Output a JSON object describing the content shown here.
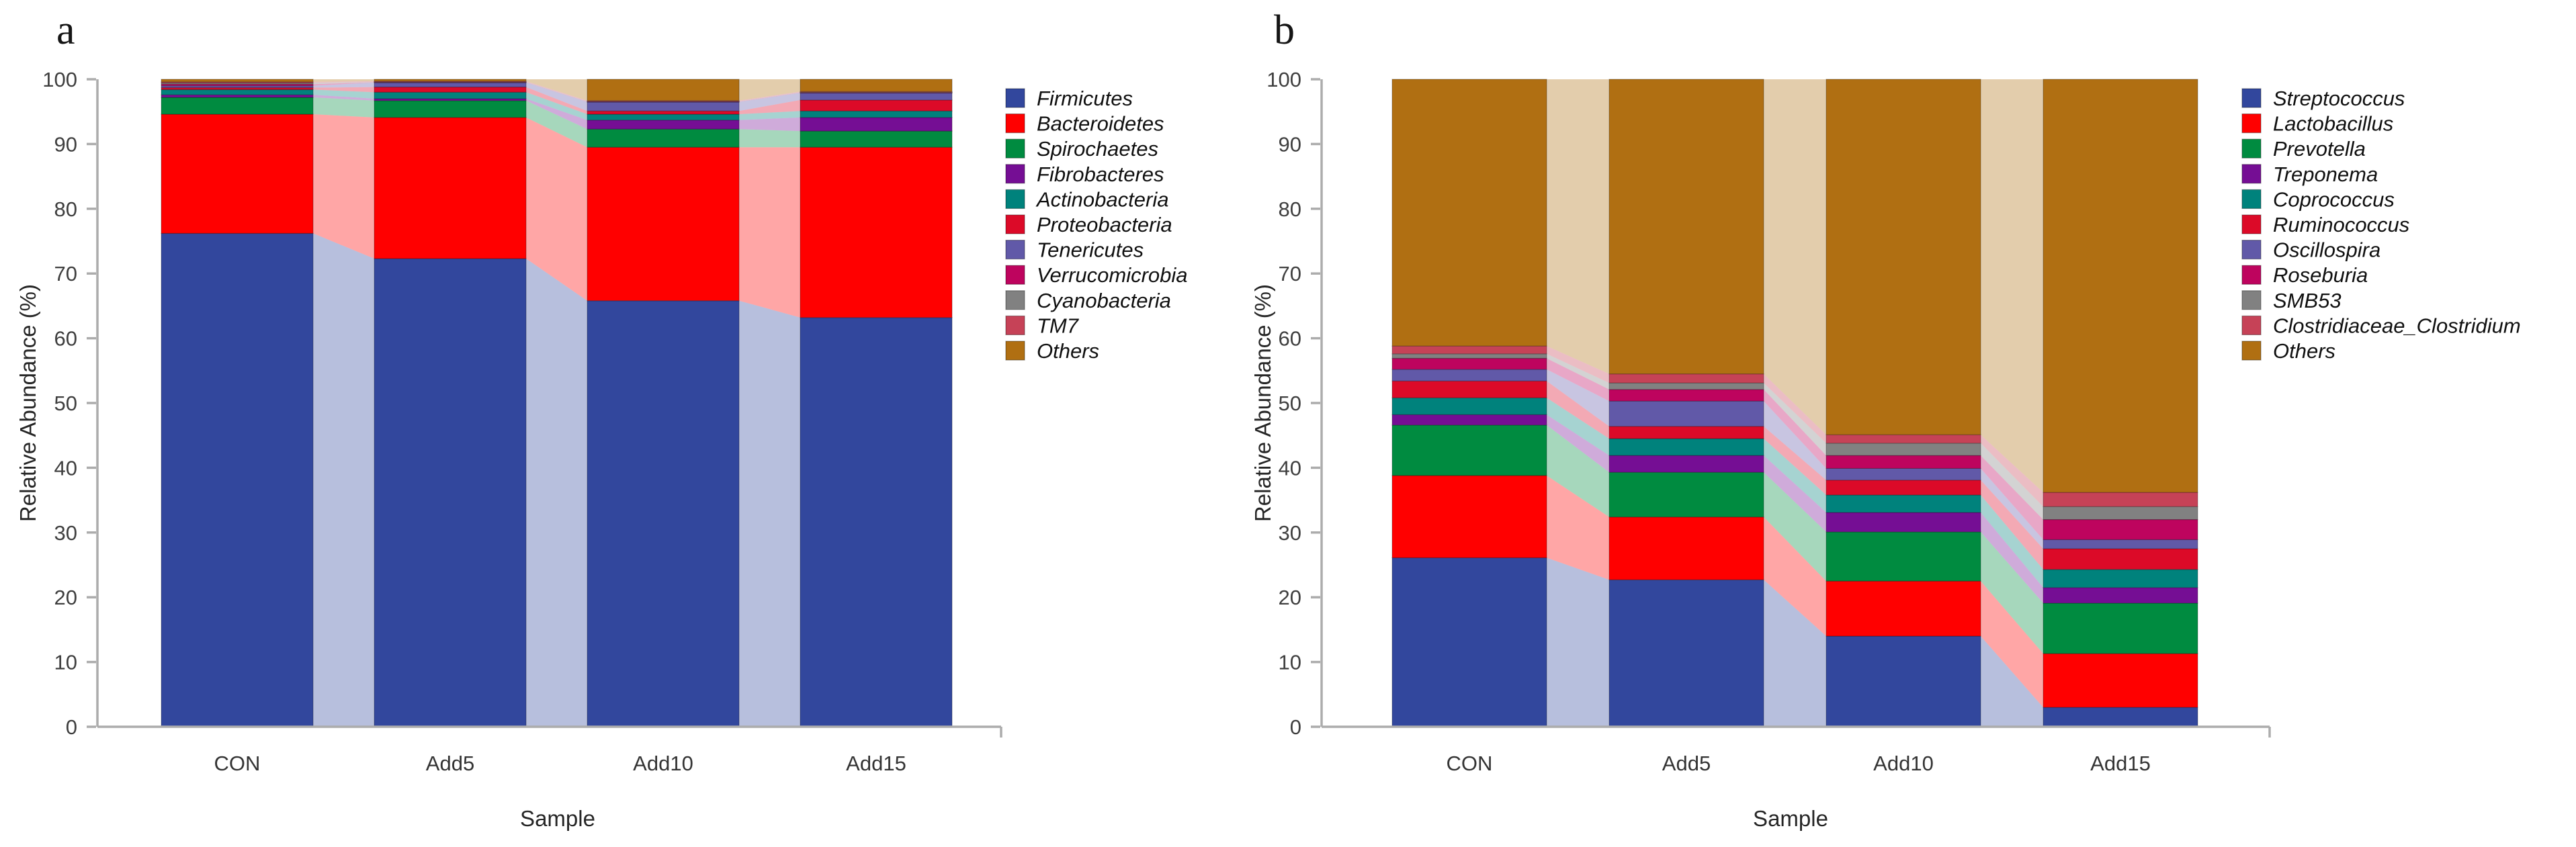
{
  "panels": [
    {
      "label": "a"
    },
    {
      "label": "b"
    }
  ],
  "style": {
    "background": "#FFFFFF",
    "axis_color": "#ACACAC",
    "tick_label_color": "#3F3F3F",
    "category_label_color": "#333333",
    "axis_title_color": "#262626",
    "legend_text_color": "#101010",
    "segment_border": "rgba(0,0,0,0.25)",
    "ribbon_opacity": 0.35
  },
  "chart_data": [
    {
      "type": "bar",
      "variant": "stacked-alluvial",
      "panel": "a",
      "title": "",
      "xlabel": "Sample",
      "ylabel": "Relative Abundance (%)",
      "ylim": [
        0,
        100
      ],
      "yticks": [
        0,
        10,
        20,
        30,
        40,
        50,
        60,
        70,
        80,
        90,
        100
      ],
      "grid": false,
      "legend_position": "right",
      "categories": [
        "CON",
        "Add5",
        "Add10",
        "Add15"
      ],
      "series": [
        {
          "name": "Firmicutes",
          "color": "#32479D",
          "values": [
            76.2,
            72.3,
            65.8,
            63.2
          ]
        },
        {
          "name": "Bacteroidetes",
          "color": "#FF0000",
          "values": [
            18.4,
            21.8,
            23.7,
            26.3
          ]
        },
        {
          "name": "Spirochaetes",
          "color": "#008B40",
          "values": [
            2.6,
            2.6,
            2.8,
            2.5
          ]
        },
        {
          "name": "Fibrobacteres",
          "color": "#750E94",
          "values": [
            0.4,
            0.3,
            1.4,
            2.1
          ]
        },
        {
          "name": "Actinobacteria",
          "color": "#00827C",
          "values": [
            0.8,
            1.0,
            0.9,
            1.0
          ]
        },
        {
          "name": "Proteobacteria",
          "color": "#DC0A28",
          "values": [
            0.3,
            0.8,
            0.5,
            1.7
          ]
        },
        {
          "name": "Tenericutes",
          "color": "#6159A8",
          "values": [
            0.3,
            0.7,
            1.4,
            1.1
          ]
        },
        {
          "name": "Verrucomicrobia",
          "color": "#BE045E",
          "values": [
            0.25,
            0.05,
            0.05,
            0.05
          ]
        },
        {
          "name": "Cyanobacteria",
          "color": "#818181",
          "values": [
            0.2,
            0.05,
            0.05,
            0.05
          ]
        },
        {
          "name": "TM7",
          "color": "#C64257",
          "values": [
            0.15,
            0.1,
            0.1,
            0.1
          ]
        },
        {
          "name": "Others",
          "color": "#B06F12",
          "values": [
            0.4,
            0.3,
            3.3,
            1.9
          ]
        }
      ]
    },
    {
      "type": "bar",
      "variant": "stacked-alluvial",
      "panel": "b",
      "title": "",
      "xlabel": "Sample",
      "ylabel": "Relative Abundance (%)",
      "ylim": [
        0,
        100
      ],
      "yticks": [
        0,
        10,
        20,
        30,
        40,
        50,
        60,
        70,
        80,
        90,
        100
      ],
      "grid": false,
      "legend_position": "right",
      "categories": [
        "CON",
        "Add5",
        "Add10",
        "Add15"
      ],
      "series": [
        {
          "name": "Streptococcus",
          "color": "#32479D",
          "values": [
            26.1,
            22.7,
            14.0,
            3.0
          ]
        },
        {
          "name": "Lactobacillus",
          "color": "#FF0000",
          "values": [
            12.7,
            9.7,
            8.5,
            8.3
          ]
        },
        {
          "name": "Prevotella",
          "color": "#008B40",
          "values": [
            7.8,
            6.9,
            7.6,
            7.8
          ]
        },
        {
          "name": "Treponema",
          "color": "#750E94",
          "values": [
            1.6,
            2.6,
            3.0,
            2.4
          ]
        },
        {
          "name": "Coprococcus",
          "color": "#00827C",
          "values": [
            2.6,
            2.6,
            2.7,
            2.8
          ]
        },
        {
          "name": "Ruminococcus",
          "color": "#DC0A28",
          "values": [
            2.6,
            1.9,
            2.3,
            3.2
          ]
        },
        {
          "name": "Oscillospira",
          "color": "#6159A8",
          "values": [
            1.8,
            3.9,
            1.8,
            1.4
          ]
        },
        {
          "name": "Roseburia",
          "color": "#BE045E",
          "values": [
            1.7,
            1.8,
            2.0,
            3.1
          ]
        },
        {
          "name": "SMB53",
          "color": "#818181",
          "values": [
            0.7,
            1.0,
            1.9,
            2.0
          ]
        },
        {
          "name": "Clostridiaceae_Clostridium",
          "color": "#C64257",
          "values": [
            1.2,
            1.4,
            1.3,
            2.2
          ]
        },
        {
          "name": "Others",
          "color": "#B06F12",
          "values": [
            41.2,
            45.5,
            54.9,
            63.8
          ]
        }
      ]
    }
  ]
}
